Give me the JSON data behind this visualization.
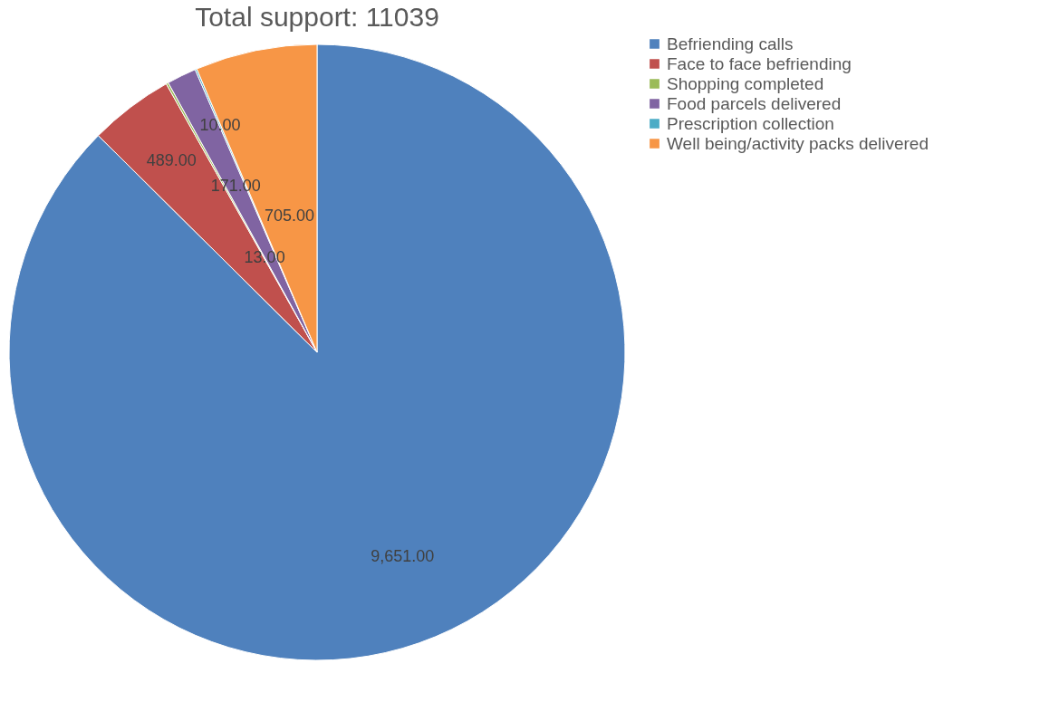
{
  "chart_data": {
    "type": "pie",
    "title": "Total support: 11039",
    "categories": [
      "Befriending calls",
      "Face to face befriending",
      "Shopping completed",
      "Food parcels delivered",
      "Prescription collection",
      "Well being/activity packs delivered"
    ],
    "values": [
      9651,
      489,
      13,
      171,
      10,
      705
    ],
    "colors": [
      "#4f81bd",
      "#c0504d",
      "#9bbb59",
      "#8064a2",
      "#4bacc6",
      "#f79646"
    ],
    "value_labels": [
      "9,651.00",
      "489.00",
      "13.00",
      "171.00",
      "10.00",
      "705.00"
    ],
    "legend": "right"
  }
}
